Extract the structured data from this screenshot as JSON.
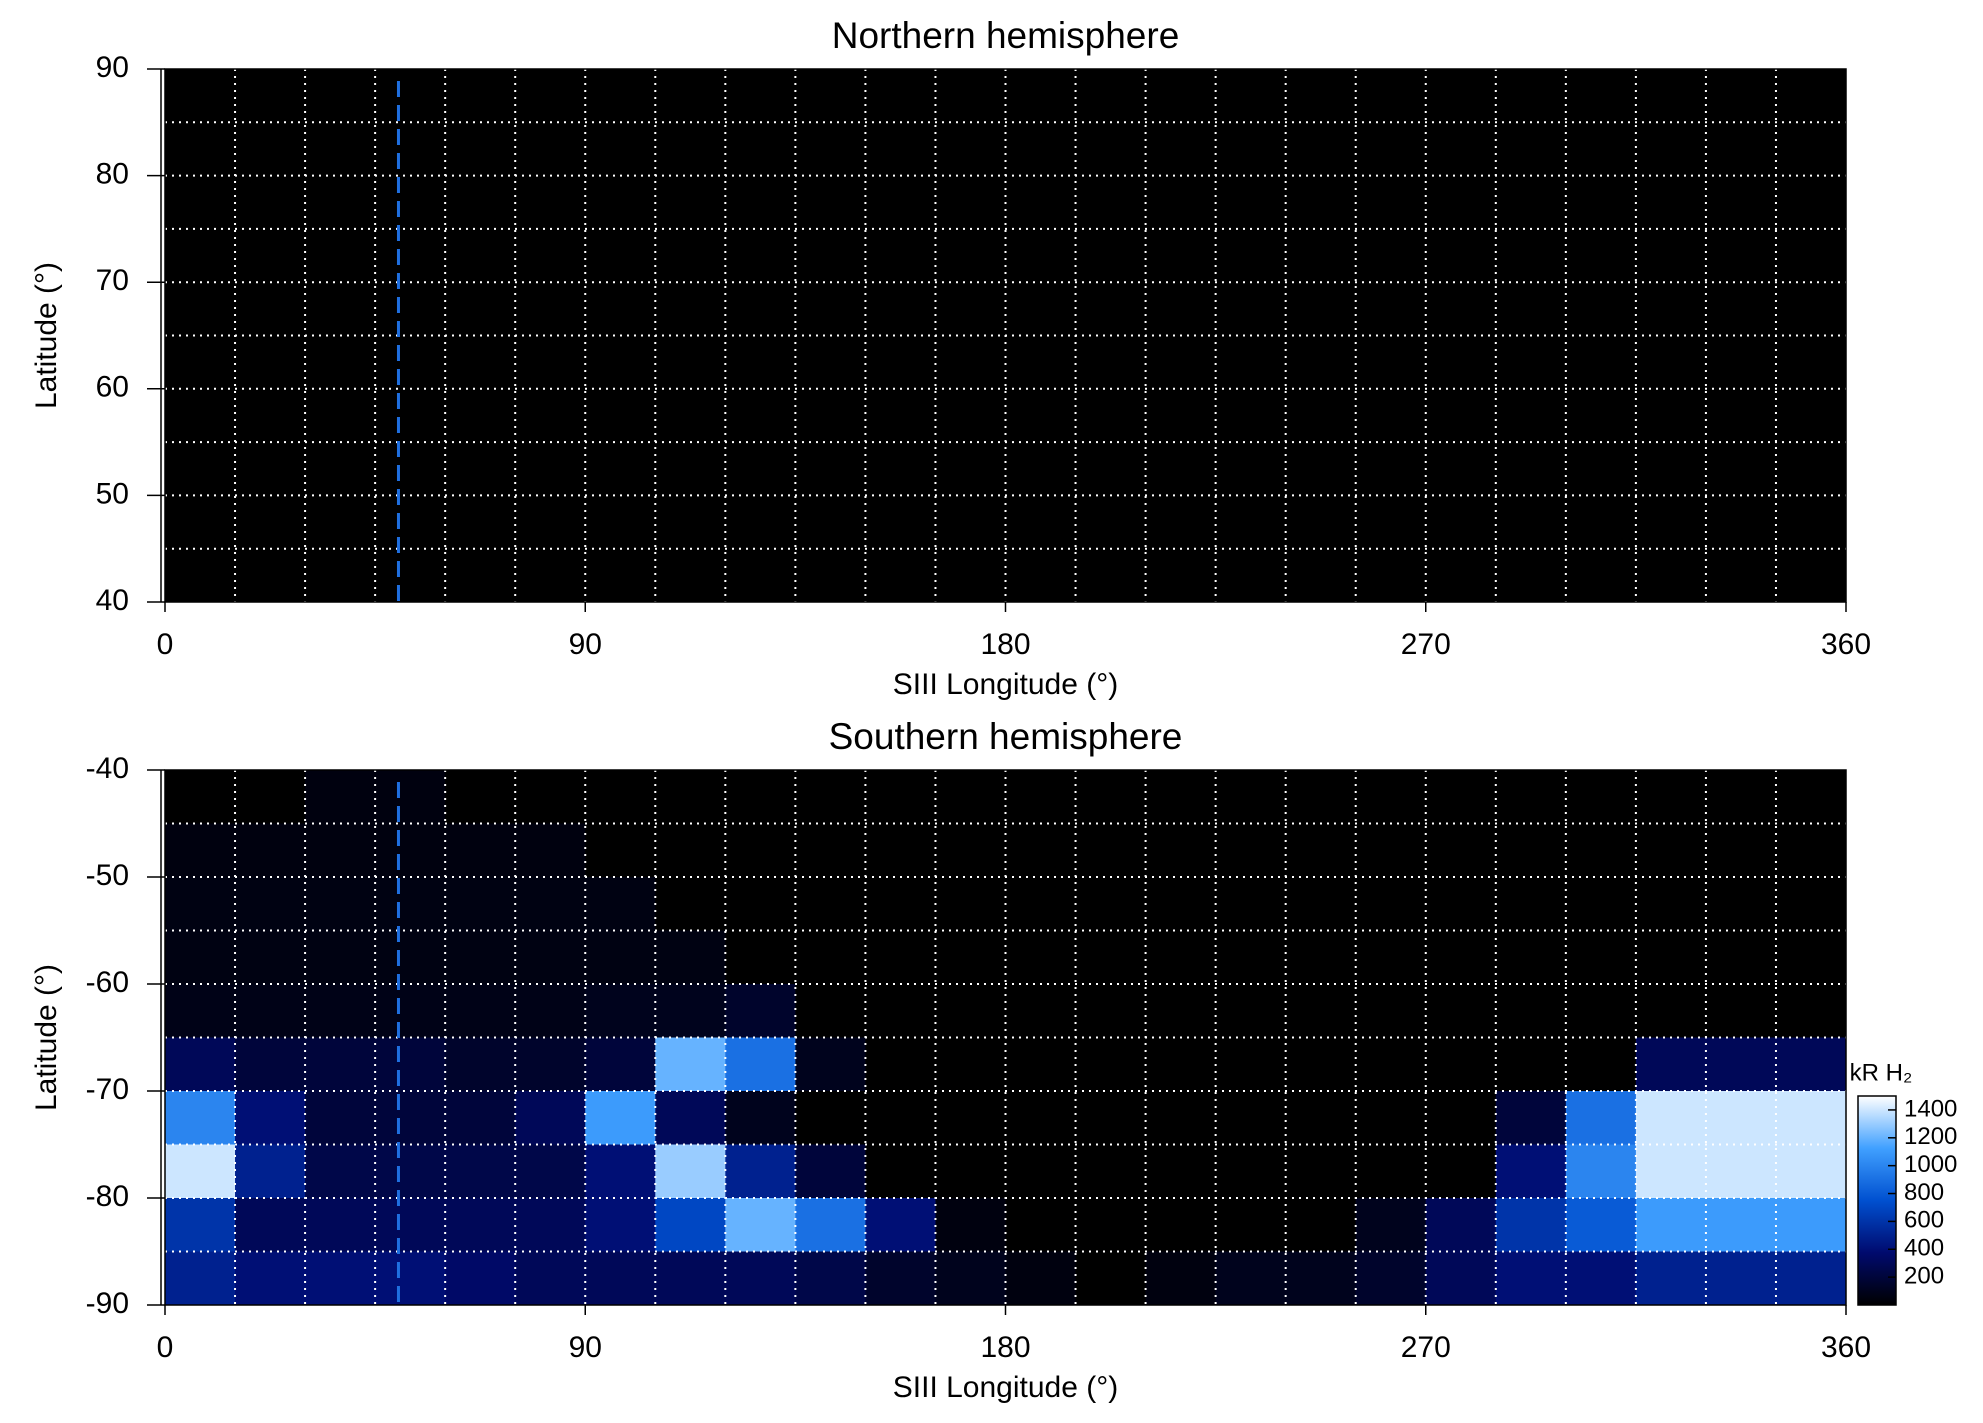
{
  "chart_data": [
    {
      "type": "heatmap",
      "title": "Northern hemisphere",
      "xlabel": "SIII Longitude (°)",
      "ylabel": "Latitude (°)",
      "xlim": [
        0,
        360
      ],
      "xticks": [
        0,
        90,
        180,
        270,
        360
      ],
      "ylim": [
        40,
        90
      ],
      "yticks": [
        40,
        50,
        60,
        70,
        80,
        90
      ],
      "x_bins": [
        0,
        15,
        30,
        45,
        60,
        75,
        90,
        105,
        120,
        135,
        150,
        165,
        180,
        195,
        210,
        225,
        240,
        255,
        270,
        285,
        300,
        315,
        330,
        345,
        360
      ],
      "y_bins": [
        90,
        85,
        80,
        75,
        70,
        65,
        60,
        55,
        50,
        45,
        40
      ],
      "values": [
        [
          0,
          0,
          0,
          0,
          0,
          0,
          0,
          0,
          0,
          0,
          0,
          0,
          0,
          0,
          0,
          0,
          0,
          0,
          0,
          0,
          0,
          0,
          0,
          0
        ],
        [
          0,
          0,
          0,
          0,
          0,
          0,
          0,
          0,
          0,
          0,
          0,
          0,
          0,
          0,
          0,
          0,
          0,
          0,
          0,
          0,
          0,
          0,
          0,
          0
        ],
        [
          0,
          0,
          0,
          0,
          0,
          0,
          0,
          0,
          0,
          0,
          0,
          0,
          0,
          0,
          0,
          0,
          0,
          0,
          0,
          0,
          0,
          0,
          0,
          0
        ],
        [
          0,
          0,
          0,
          0,
          0,
          0,
          0,
          0,
          0,
          0,
          0,
          0,
          0,
          0,
          0,
          0,
          0,
          0,
          0,
          0,
          0,
          0,
          0,
          0
        ],
        [
          0,
          0,
          0,
          0,
          0,
          0,
          0,
          0,
          0,
          0,
          0,
          0,
          0,
          0,
          0,
          0,
          0,
          0,
          0,
          0,
          0,
          0,
          0,
          0
        ],
        [
          0,
          0,
          0,
          0,
          0,
          0,
          0,
          0,
          0,
          0,
          0,
          0,
          0,
          0,
          0,
          0,
          0,
          0,
          0,
          0,
          0,
          0,
          0,
          0
        ],
        [
          0,
          0,
          0,
          0,
          0,
          0,
          0,
          0,
          0,
          0,
          0,
          0,
          0,
          0,
          0,
          0,
          0,
          0,
          0,
          0,
          0,
          0,
          0,
          0
        ],
        [
          0,
          0,
          0,
          0,
          0,
          0,
          0,
          0,
          0,
          0,
          0,
          0,
          0,
          0,
          0,
          0,
          0,
          0,
          0,
          0,
          0,
          0,
          0,
          0
        ],
        [
          0,
          0,
          0,
          0,
          0,
          0,
          0,
          0,
          0,
          0,
          0,
          0,
          0,
          0,
          0,
          0,
          0,
          0,
          0,
          0,
          0,
          0,
          0,
          0
        ],
        [
          0,
          0,
          0,
          0,
          0,
          0,
          0,
          0,
          0,
          0,
          0,
          0,
          0,
          0,
          0,
          0,
          0,
          0,
          0,
          0,
          0,
          0,
          0,
          0
        ]
      ],
      "clim": [
        0,
        1500
      ],
      "colormap": [
        "#000000",
        "#000a6e",
        "#0050d0",
        "#40a0ff",
        "#ffffff"
      ],
      "grid": true,
      "reference_line": {
        "x": 50,
        "color": "#1f6fe0"
      }
    },
    {
      "type": "heatmap",
      "title": "Southern hemisphere",
      "xlabel": "SIII Longitude (°)",
      "ylabel": "Latitude (°)",
      "xlim": [
        0,
        360
      ],
      "xticks": [
        0,
        90,
        180,
        270,
        360
      ],
      "ylim": [
        -90,
        -40
      ],
      "yticks": [
        -90,
        -80,
        -70,
        -60,
        -50,
        -40
      ],
      "x_bins": [
        0,
        15,
        30,
        45,
        60,
        75,
        90,
        105,
        120,
        135,
        150,
        165,
        180,
        195,
        210,
        225,
        240,
        255,
        270,
        285,
        300,
        315,
        330,
        345,
        360
      ],
      "y_bins": [
        -40,
        -45,
        -50,
        -55,
        -60,
        -65,
        -70,
        -75,
        -80,
        -85,
        -90
      ],
      "values": [
        [
          0,
          0,
          50,
          50,
          0,
          0,
          0,
          0,
          0,
          0,
          0,
          0,
          0,
          0,
          0,
          0,
          0,
          0,
          0,
          0,
          0,
          0,
          0,
          0
        ],
        [
          50,
          50,
          50,
          50,
          50,
          50,
          0,
          0,
          0,
          0,
          0,
          0,
          0,
          0,
          0,
          0,
          0,
          0,
          0,
          0,
          0,
          0,
          0,
          0
        ],
        [
          60,
          60,
          60,
          60,
          60,
          60,
          60,
          0,
          0,
          0,
          0,
          0,
          0,
          0,
          0,
          0,
          0,
          0,
          0,
          0,
          0,
          0,
          0,
          0
        ],
        [
          60,
          60,
          60,
          60,
          60,
          60,
          60,
          60,
          0,
          0,
          0,
          0,
          0,
          0,
          0,
          0,
          0,
          0,
          0,
          0,
          0,
          0,
          0,
          0
        ],
        [
          80,
          80,
          80,
          80,
          80,
          80,
          100,
          100,
          150,
          0,
          0,
          0,
          0,
          0,
          0,
          0,
          0,
          0,
          0,
          0,
          0,
          0,
          0,
          0
        ],
        [
          300,
          200,
          200,
          200,
          150,
          150,
          200,
          1200,
          900,
          100,
          0,
          0,
          0,
          0,
          0,
          0,
          0,
          0,
          0,
          0,
          0,
          300,
          300,
          300
        ],
        [
          1000,
          400,
          200,
          200,
          200,
          300,
          1100,
          300,
          100,
          0,
          0,
          0,
          0,
          0,
          0,
          0,
          0,
          0,
          0,
          200,
          900,
          1400,
          1400,
          1400
        ],
        [
          1400,
          500,
          250,
          250,
          250,
          250,
          400,
          1300,
          500,
          200,
          0,
          0,
          0,
          0,
          0,
          0,
          0,
          0,
          0,
          400,
          1000,
          1400,
          1400,
          1400
        ],
        [
          600,
          300,
          300,
          300,
          300,
          300,
          400,
          700,
          1200,
          900,
          400,
          50,
          0,
          0,
          0,
          0,
          0,
          100,
          300,
          600,
          800,
          1100,
          1100,
          1100
        ],
        [
          500,
          400,
          400,
          400,
          350,
          300,
          300,
          300,
          300,
          250,
          150,
          100,
          50,
          0,
          50,
          100,
          100,
          150,
          300,
          400,
          400,
          500,
          500,
          500
        ]
      ],
      "clim": [
        0,
        1500
      ],
      "colormap": [
        "#000000",
        "#000a6e",
        "#0050d0",
        "#40a0ff",
        "#ffffff"
      ],
      "grid": true,
      "reference_line": {
        "x": 50,
        "color": "#1f6fe0"
      },
      "colorbar": {
        "label": "kR H₂",
        "ticks": [
          200,
          400,
          600,
          800,
          1000,
          1200,
          1400
        ]
      }
    }
  ]
}
